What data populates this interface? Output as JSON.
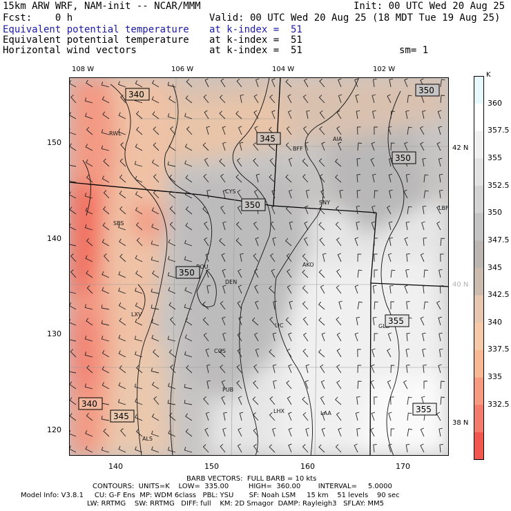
{
  "header": {
    "left_line1": "15km ARW WRF, NAM-init -- NCAR/MMM",
    "left_line2": "Fcst:    0 h",
    "right_line1": "Init: 00 UTC Wed 20 Aug 25",
    "right_line2": "Valid: 00 UTC Wed 20 Aug 25 (18 MDT Tue 19 Aug 25)",
    "fields": [
      {
        "name": "Equivalent potential temperature",
        "level": "at k-index =  51",
        "color": "#1a1aa8"
      },
      {
        "name": "Equivalent potential temperature",
        "level": "at k-index =  51",
        "color": "#000000"
      },
      {
        "name": "Horizontal wind vectors",
        "level": "at k-index =  51",
        "color": "#000000"
      }
    ],
    "smoothing": "sm= 1"
  },
  "map": {
    "lon_labels": [
      "108 W",
      "106 W",
      "104 W",
      "102 W"
    ],
    "lat_labels": [
      "42 N",
      "40 N",
      "38 N"
    ],
    "x_ticks": [
      "140",
      "150",
      "160",
      "170"
    ],
    "y_ticks": [
      "150",
      "140",
      "130",
      "120"
    ],
    "contour_labels": [
      "340",
      "345",
      "350",
      "350",
      "350",
      "350",
      "355",
      "355",
      "340",
      "345"
    ],
    "stations": [
      "RWL",
      "BFF",
      "AIA",
      "CYS",
      "SNY",
      "LBF",
      "SBS",
      "BOU",
      "DEN",
      "AKO",
      "LXV",
      "LIC",
      "GLD",
      "COS",
      "PUB",
      "LHX",
      "LAA",
      "ALS"
    ]
  },
  "colorbar": {
    "unit": "K",
    "labels": [
      "360",
      "357.5",
      "355",
      "352.5",
      "350",
      "347.5",
      "345",
      "342.5",
      "340",
      "337.5",
      "335",
      "332.5"
    ],
    "colors": [
      "#e6fafd",
      "#ffffff",
      "#f0f0f0",
      "#e2e2e2",
      "#d3d3d3",
      "#c4c4c4",
      "#bcb6b3",
      "#cbbcaf",
      "#e7c7b0",
      "#f6c9a9",
      "#f8b893",
      "#f69a80",
      "#f47c6c",
      "#f2574f"
    ]
  },
  "footer": {
    "line1": "BARB VECTORS:  FULL BARB = 10 kts",
    "line2": "CONTOURS:  UNITS=K    LOW=  335.00         HIGH=  360.00        INTERVAL=     5.0000",
    "line3": "Model Info: V3.8.1     CU: G-F Ens  MP: WDM 6class   PBL: YSU       SF: Noah LSM     15 km    51 levels    90 sec",
    "line4": "LW: RRTMG    SW: RRTMG   DIFF: full    KM: 2D Smagor  DAMP: Rayleigh3   SFLAY: MM5"
  }
}
